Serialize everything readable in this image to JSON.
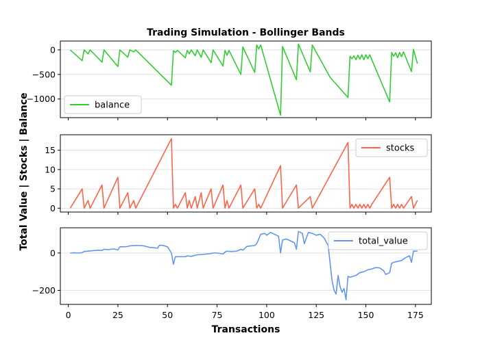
{
  "chart_data": {
    "type": "line",
    "title": "Trading Simulation - Bollinger Bands",
    "xlabel": "Transactions",
    "ylabel": "Total Value | Stocks | Balance",
    "xlim": [
      -4,
      183
    ],
    "xticks": [
      0,
      25,
      50,
      75,
      100,
      125,
      150,
      175
    ],
    "grid": true,
    "subplots": [
      {
        "name": "balance",
        "color": "#32cd32",
        "legend_loc": "lower-left",
        "ylim": [
          -1380,
          180
        ],
        "yticks": [
          0,
          -500,
          -1000
        ],
        "x": [
          1,
          7,
          8,
          10,
          11,
          17,
          18,
          25,
          26,
          30,
          31,
          33,
          34,
          52,
          53,
          54,
          55,
          59,
          60,
          61,
          62,
          64,
          65,
          67,
          68,
          72,
          73,
          78,
          79,
          80,
          81,
          87,
          88,
          94,
          95,
          96,
          97,
          107,
          108,
          115,
          116,
          122,
          123,
          132,
          141,
          142,
          143,
          144,
          145,
          146,
          147,
          148,
          149,
          150,
          151,
          152,
          153,
          162,
          163,
          164,
          165,
          166,
          167,
          168,
          169,
          173,
          174,
          176
        ],
        "y": [
          0,
          -220,
          0,
          -80,
          0,
          -250,
          0,
          -340,
          0,
          -150,
          0,
          -40,
          0,
          -720,
          -20,
          -50,
          -10,
          -160,
          -10,
          -80,
          0,
          -120,
          0,
          -150,
          0,
          -260,
          0,
          -330,
          -10,
          -110,
          -10,
          -500,
          60,
          -460,
          100,
          20,
          100,
          -1330,
          70,
          -610,
          120,
          -450,
          100,
          -560,
          -970,
          -130,
          -180,
          -120,
          -200,
          -110,
          -190,
          -100,
          -200,
          -100,
          -180,
          -100,
          -200,
          -1060,
          -50,
          -130,
          -60,
          -160,
          -50,
          -140,
          -40,
          -440,
          10,
          -280
        ]
      },
      {
        "name": "stocks",
        "color": "#ff6347",
        "legend_loc": "upper-right",
        "ylim": [
          -1,
          19
        ],
        "yticks": [
          0,
          5,
          10,
          15
        ],
        "x": [
          1,
          7,
          8,
          10,
          11,
          17,
          18,
          25,
          26,
          30,
          31,
          33,
          34,
          52,
          53,
          54,
          55,
          59,
          60,
          61,
          62,
          64,
          65,
          67,
          68,
          72,
          73,
          78,
          79,
          80,
          81,
          87,
          88,
          94,
          95,
          96,
          97,
          107,
          108,
          115,
          116,
          122,
          123,
          141,
          142,
          143,
          144,
          145,
          146,
          147,
          148,
          149,
          150,
          151,
          152,
          153,
          162,
          163,
          164,
          165,
          166,
          167,
          168,
          169,
          173,
          174,
          176
        ],
        "y": [
          0,
          5,
          0,
          2,
          0,
          6,
          0,
          8,
          0,
          4,
          0,
          2,
          0,
          18,
          0,
          1,
          0,
          4,
          0,
          2,
          0,
          3,
          0,
          4,
          0,
          5,
          0,
          6,
          0,
          2,
          0,
          6,
          0,
          5,
          0,
          1,
          0,
          11,
          0,
          6,
          0,
          3,
          0,
          17,
          0,
          1,
          0,
          1,
          0,
          1,
          0,
          1,
          0,
          1,
          0,
          1,
          8,
          0,
          1,
          0,
          1,
          0,
          1,
          0,
          3,
          0,
          2
        ]
      },
      {
        "name": "total_value",
        "color": "#6495ed",
        "legend_loc": "upper-right",
        "ylim": [
          -275,
          135
        ],
        "yticks": [
          0,
          -200
        ],
        "x": [
          1,
          3,
          5,
          7,
          8,
          10,
          12,
          15,
          17,
          18,
          20,
          23,
          25,
          26,
          28,
          30,
          31,
          33,
          36,
          38,
          40,
          41,
          43,
          45,
          46,
          48,
          50,
          52,
          53,
          54,
          56,
          59,
          60,
          62,
          64,
          65,
          67,
          70,
          72,
          73,
          75,
          78,
          79,
          80,
          82,
          85,
          87,
          88,
          90,
          92,
          94,
          95,
          97,
          99,
          100,
          102,
          104,
          106,
          107,
          108,
          110,
          112,
          114,
          115,
          116,
          118,
          119,
          121,
          123,
          125,
          127,
          129,
          131,
          133,
          134,
          135,
          136,
          137,
          138,
          139,
          140,
          141,
          142,
          145,
          147,
          149,
          151,
          153,
          155,
          157,
          159,
          160,
          162,
          163,
          164,
          166,
          168,
          170,
          172,
          173,
          174,
          176
        ],
        "y": [
          0,
          1,
          0,
          2,
          8,
          10,
          12,
          15,
          14,
          20,
          18,
          22,
          16,
          33,
          33,
          35,
          38,
          40,
          40,
          38,
          33,
          30,
          28,
          26,
          42,
          40,
          33,
          0,
          -60,
          -20,
          -20,
          -20,
          -15,
          -18,
          -12,
          -10,
          -8,
          -5,
          -3,
          0,
          0,
          -5,
          5,
          10,
          8,
          10,
          20,
          15,
          35,
          38,
          40,
          50,
          100,
          105,
          95,
          110,
          100,
          90,
          0,
          70,
          75,
          65,
          55,
          20,
          115,
          105,
          50,
          110,
          105,
          95,
          100,
          80,
          40,
          -150,
          -200,
          -220,
          -120,
          -180,
          -210,
          -190,
          -250,
          -125,
          -130,
          -120,
          -105,
          -100,
          -90,
          -85,
          -78,
          -80,
          -95,
          -115,
          -105,
          -55,
          -50,
          -45,
          -40,
          -25,
          -15,
          -50,
          10,
          10
        ]
      }
    ]
  }
}
